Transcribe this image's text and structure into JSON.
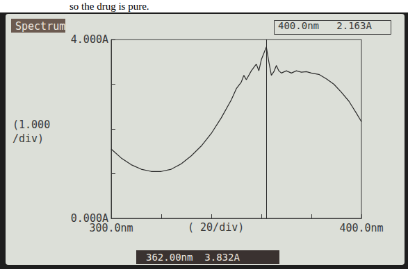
{
  "chart_data": {
    "type": "line",
    "caption": "so the drug is pure.",
    "title": "Spectrum",
    "readout": "400.0nm   2.163A",
    "cursor": {
      "x": 362,
      "label": "362.00nm  3.832A"
    },
    "x_division": {
      "value": 20,
      "label": "( 20/div)"
    },
    "y_division": {
      "value": 1,
      "label": "(1.000\n/div)"
    },
    "x": [
      300,
      304,
      308,
      312,
      316,
      320,
      324,
      328,
      332,
      336,
      340,
      344,
      348,
      350,
      352,
      353,
      354,
      356,
      358,
      359,
      360,
      362,
      363,
      364,
      365,
      366,
      367,
      368,
      370,
      372,
      374,
      376,
      378,
      380,
      383,
      386,
      389,
      392,
      395,
      398,
      400
    ],
    "values": [
      1.55,
      1.35,
      1.2,
      1.1,
      1.05,
      1.05,
      1.1,
      1.22,
      1.4,
      1.62,
      1.9,
      2.25,
      2.65,
      2.9,
      3.05,
      3.2,
      3.1,
      3.3,
      3.45,
      3.3,
      3.55,
      3.832,
      3.5,
      3.2,
      3.28,
      3.42,
      3.3,
      3.25,
      3.3,
      3.25,
      3.3,
      3.27,
      3.28,
      3.25,
      3.22,
      3.12,
      3.0,
      2.82,
      2.62,
      2.35,
      2.163
    ],
    "color": "#2a2a2a",
    "xlim": [
      300,
      400
    ],
    "ylim": [
      0,
      4
    ],
    "xticks": [
      {
        "value": 300,
        "label": "300.0nm"
      },
      {
        "value": 400,
        "label": "400.0nm"
      }
    ],
    "yticks": [
      {
        "value": 0,
        "label": "0.000A"
      },
      {
        "value": 4,
        "label": "4.000A"
      }
    ],
    "grid": false
  }
}
